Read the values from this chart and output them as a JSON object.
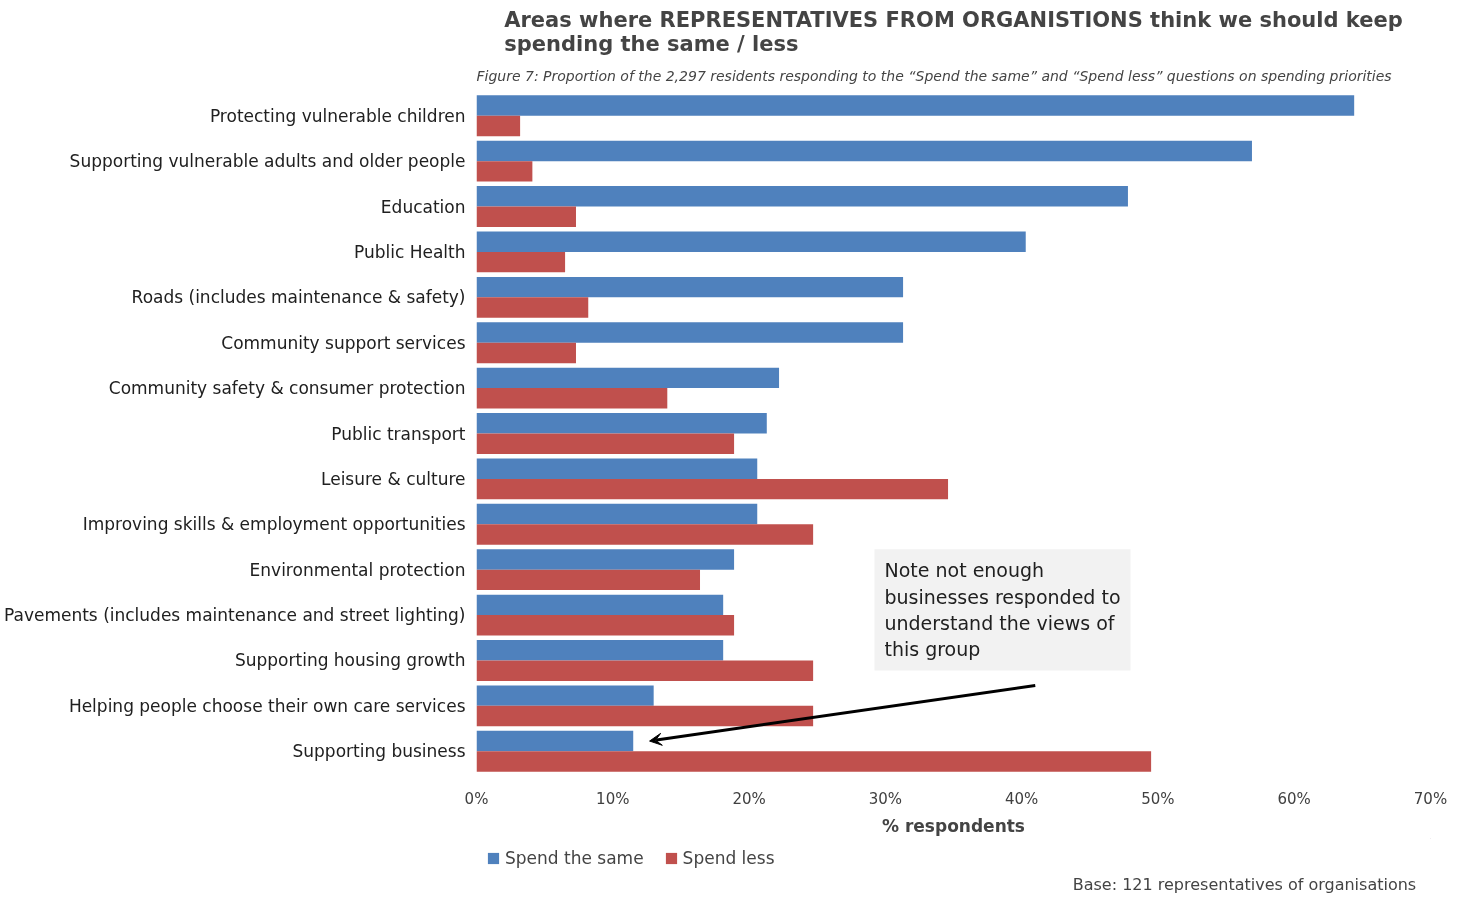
{
  "chart_data": {
    "type": "bar",
    "orientation": "horizontal",
    "title": "Areas where REPRESENTATIVES FROM ORGANISTIONS think we should keep\nspending the same / less",
    "xlabel": "% respondents",
    "categories": [
      "Protecting vulnerable children",
      "Supporting vulnerable adults and older people",
      "Education",
      "Public Health",
      "Roads (includes maintenance & safety)",
      "Community support services",
      "Community safety & consumer protection",
      "Public transport",
      "Leisure & culture",
      "Improving skills & employment opportunities",
      "Environmental protection",
      "Pavements (includes maintenance and street lighting)",
      "Supporting housing growth",
      "Helping people choose their own care services",
      "Supporting business"
    ],
    "series": [
      {
        "name": "Spend the same",
        "color": "#4f81bd",
        "values": [
          64.4,
          56.9,
          47.8,
          40.3,
          31.3,
          31.3,
          22.2,
          21.3,
          20.6,
          20.6,
          18.9,
          18.1,
          18.1,
          13.0,
          11.5
        ]
      },
      {
        "name": "Spend less",
        "color": "#c0504d",
        "values": [
          3.2,
          4.1,
          7.3,
          6.5,
          8.2,
          7.3,
          14.0,
          18.9,
          34.6,
          24.7,
          16.4,
          18.9,
          24.7,
          24.7,
          49.5
        ]
      }
    ],
    "xlim": [
      0,
      70
    ],
    "xticks": [
      {
        "value": 0,
        "label": "0%"
      },
      {
        "value": 10,
        "label": "10%"
      },
      {
        "value": 20,
        "label": "20%"
      },
      {
        "value": 30,
        "label": "30%"
      },
      {
        "value": 40,
        "label": "40%"
      },
      {
        "value": 50,
        "label": "50%"
      },
      {
        "value": 60,
        "label": "60%"
      },
      {
        "value": 70,
        "label": "70%"
      }
    ],
    "grid": false,
    "legend": "bottom left",
    "annotations": [
      "Figure 7: Proportion of the 2,297 residents responding to the “Spend the same” and “Spend less” questions on spending priorities",
      "Note not enough\nbusinesses responded to\nunderstand the views of\nthis group",
      "Base: 121 representatives of organisations"
    ]
  }
}
